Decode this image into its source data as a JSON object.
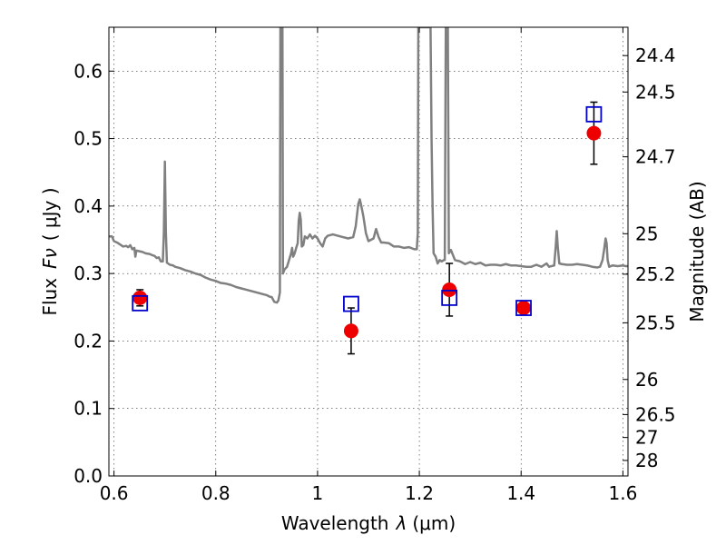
{
  "chart_data": {
    "type": "scatter",
    "xlabel_prefix": "Wavelength",
    "xlabel_symbol": "λ",
    "xlabel_unit": "(μm)",
    "ylabel_prefix": "Flux",
    "ylabel_symbol": "Fν",
    "ylabel_unit": "( μJy )",
    "y2label": "Magnitude (AB)",
    "xlim": [
      0.59,
      1.61
    ],
    "ylim": [
      0.0,
      0.665
    ],
    "grid": true,
    "x_ticks": [
      0.6,
      0.8,
      1.0,
      1.2,
      1.4,
      1.6
    ],
    "x_tick_labels": [
      "0.6",
      "0.8",
      "1",
      "1.2",
      "1.4",
      "1.6"
    ],
    "y_ticks": [
      0.0,
      0.1,
      0.2,
      0.3,
      0.4,
      0.5,
      0.6
    ],
    "y_tick_labels": [
      "0.0",
      "0.1",
      "0.2",
      "0.3",
      "0.4",
      "0.5",
      "0.6"
    ],
    "mag_ticks": [
      {
        "label": "24.4",
        "flux": 0.623
      },
      {
        "label": "24.5",
        "flux": 0.569
      },
      {
        "label": "24.7",
        "flux": 0.473
      },
      {
        "label": "25",
        "flux": 0.359
      },
      {
        "label": "25.2",
        "flux": 0.299
      },
      {
        "label": "25.5",
        "flux": 0.227
      },
      {
        "label": "26",
        "flux": 0.143
      },
      {
        "label": "26.5",
        "flux": 0.091
      },
      {
        "label": "27",
        "flux": 0.057
      },
      {
        "label": "28",
        "flux": 0.023
      }
    ],
    "series": [
      {
        "marker": "open-square",
        "color": "#0000cc",
        "points": [
          {
            "x": 0.651,
            "y": 0.256
          },
          {
            "x": 1.066,
            "y": 0.255
          },
          {
            "x": 1.259,
            "y": 0.264
          },
          {
            "x": 1.405,
            "y": 0.249
          },
          {
            "x": 1.543,
            "y": 0.536
          }
        ]
      },
      {
        "marker": "filled-circle",
        "color": "#ee0000",
        "points": [
          {
            "x": 0.651,
            "y": 0.264,
            "err": 0.012
          },
          {
            "x": 1.066,
            "y": 0.215,
            "err": 0.034
          },
          {
            "x": 1.259,
            "y": 0.276,
            "err": 0.039
          },
          {
            "x": 1.405,
            "y": 0.249,
            "err": 0.0
          },
          {
            "x": 1.543,
            "y": 0.508,
            "err": 0.046
          }
        ]
      },
      {
        "marker": "line",
        "color": "#808080",
        "points": [
          [
            0.59,
            0.355
          ],
          [
            0.596,
            0.355
          ],
          [
            0.6,
            0.348
          ],
          [
            0.606,
            0.346
          ],
          [
            0.612,
            0.343
          ],
          [
            0.618,
            0.34
          ],
          [
            0.624,
            0.341
          ],
          [
            0.628,
            0.339
          ],
          [
            0.632,
            0.342
          ],
          [
            0.636,
            0.336
          ],
          [
            0.64,
            0.338
          ],
          [
            0.642,
            0.325
          ],
          [
            0.644,
            0.334
          ],
          [
            0.65,
            0.333
          ],
          [
            0.656,
            0.332
          ],
          [
            0.662,
            0.33
          ],
          [
            0.67,
            0.329
          ],
          [
            0.676,
            0.327
          ],
          [
            0.68,
            0.326
          ],
          [
            0.684,
            0.323
          ],
          [
            0.688,
            0.324
          ],
          [
            0.692,
            0.318
          ],
          [
            0.696,
            0.318
          ],
          [
            0.698,
            0.36
          ],
          [
            0.7,
            0.466
          ],
          [
            0.702,
            0.36
          ],
          [
            0.704,
            0.316
          ],
          [
            0.71,
            0.313
          ],
          [
            0.716,
            0.312
          ],
          [
            0.72,
            0.31
          ],
          [
            0.73,
            0.308
          ],
          [
            0.74,
            0.305
          ],
          [
            0.75,
            0.303
          ],
          [
            0.76,
            0.3
          ],
          [
            0.77,
            0.298
          ],
          [
            0.78,
            0.294
          ],
          [
            0.79,
            0.291
          ],
          [
            0.8,
            0.289
          ],
          [
            0.81,
            0.286
          ],
          [
            0.82,
            0.285
          ],
          [
            0.83,
            0.283
          ],
          [
            0.84,
            0.28
          ],
          [
            0.85,
            0.278
          ],
          [
            0.86,
            0.276
          ],
          [
            0.87,
            0.274
          ],
          [
            0.88,
            0.272
          ],
          [
            0.89,
            0.27
          ],
          [
            0.9,
            0.268
          ],
          [
            0.905,
            0.266
          ],
          [
            0.91,
            0.265
          ],
          [
            0.915,
            0.258
          ],
          [
            0.92,
            0.257
          ],
          [
            0.923,
            0.26
          ],
          [
            0.926,
            0.272
          ],
          [
            0.927,
            0.665
          ],
          [
            0.929,
            0.665
          ],
          [
            0.931,
            0.665
          ],
          [
            0.932,
            0.3
          ],
          [
            0.935,
            0.306
          ],
          [
            0.94,
            0.31
          ],
          [
            0.944,
            0.32
          ],
          [
            0.948,
            0.33
          ],
          [
            0.95,
            0.338
          ],
          [
            0.952,
            0.325
          ],
          [
            0.955,
            0.33
          ],
          [
            0.958,
            0.338
          ],
          [
            0.961,
            0.345
          ],
          [
            0.963,
            0.378
          ],
          [
            0.965,
            0.39
          ],
          [
            0.967,
            0.38
          ],
          [
            0.969,
            0.34
          ],
          [
            0.972,
            0.342
          ],
          [
            0.975,
            0.355
          ],
          [
            0.98,
            0.352
          ],
          [
            0.985,
            0.358
          ],
          [
            0.99,
            0.352
          ],
          [
            0.995,
            0.356
          ],
          [
            1.0,
            0.352
          ],
          [
            1.005,
            0.345
          ],
          [
            1.01,
            0.34
          ],
          [
            1.015,
            0.352
          ],
          [
            1.02,
            0.356
          ],
          [
            1.03,
            0.358
          ],
          [
            1.04,
            0.356
          ],
          [
            1.05,
            0.354
          ],
          [
            1.06,
            0.352
          ],
          [
            1.07,
            0.354
          ],
          [
            1.075,
            0.37
          ],
          [
            1.08,
            0.403
          ],
          [
            1.083,
            0.41
          ],
          [
            1.086,
            0.4
          ],
          [
            1.09,
            0.385
          ],
          [
            1.095,
            0.36
          ],
          [
            1.1,
            0.348
          ],
          [
            1.105,
            0.35
          ],
          [
            1.11,
            0.352
          ],
          [
            1.115,
            0.366
          ],
          [
            1.12,
            0.354
          ],
          [
            1.125,
            0.346
          ],
          [
            1.13,
            0.346
          ],
          [
            1.14,
            0.345
          ],
          [
            1.15,
            0.34
          ],
          [
            1.16,
            0.34
          ],
          [
            1.17,
            0.338
          ],
          [
            1.18,
            0.339
          ],
          [
            1.19,
            0.336
          ],
          [
            1.195,
            0.336
          ],
          [
            1.197,
            0.36
          ],
          [
            1.198,
            0.665
          ],
          [
            1.215,
            0.665
          ],
          [
            1.22,
            0.665
          ],
          [
            1.222,
            0.665
          ],
          [
            1.224,
            0.5
          ],
          [
            1.226,
            0.4
          ],
          [
            1.228,
            0.33
          ],
          [
            1.232,
            0.325
          ],
          [
            1.236,
            0.315
          ],
          [
            1.24,
            0.32
          ],
          [
            1.244,
            0.318
          ],
          [
            1.248,
            0.32
          ],
          [
            1.25,
            0.32
          ],
          [
            1.252,
            0.665
          ],
          [
            1.256,
            0.665
          ],
          [
            1.258,
            0.33
          ],
          [
            1.262,
            0.335
          ],
          [
            1.27,
            0.32
          ],
          [
            1.28,
            0.318
          ],
          [
            1.29,
            0.314
          ],
          [
            1.3,
            0.317
          ],
          [
            1.31,
            0.314
          ],
          [
            1.32,
            0.316
          ],
          [
            1.33,
            0.312
          ],
          [
            1.34,
            0.313
          ],
          [
            1.35,
            0.313
          ],
          [
            1.36,
            0.312
          ],
          [
            1.37,
            0.314
          ],
          [
            1.38,
            0.312
          ],
          [
            1.39,
            0.312
          ],
          [
            1.4,
            0.311
          ],
          [
            1.41,
            0.31
          ],
          [
            1.42,
            0.31
          ],
          [
            1.43,
            0.313
          ],
          [
            1.44,
            0.31
          ],
          [
            1.45,
            0.315
          ],
          [
            1.455,
            0.31
          ],
          [
            1.46,
            0.311
          ],
          [
            1.465,
            0.312
          ],
          [
            1.468,
            0.34
          ],
          [
            1.47,
            0.363
          ],
          [
            1.472,
            0.34
          ],
          [
            1.475,
            0.315
          ],
          [
            1.48,
            0.314
          ],
          [
            1.49,
            0.313
          ],
          [
            1.5,
            0.313
          ],
          [
            1.51,
            0.314
          ],
          [
            1.52,
            0.313
          ],
          [
            1.53,
            0.312
          ],
          [
            1.54,
            0.31
          ],
          [
            1.55,
            0.309
          ],
          [
            1.555,
            0.31
          ],
          [
            1.56,
            0.32
          ],
          [
            1.563,
            0.335
          ],
          [
            1.566,
            0.352
          ],
          [
            1.568,
            0.345
          ],
          [
            1.57,
            0.32
          ],
          [
            1.573,
            0.31
          ],
          [
            1.58,
            0.312
          ],
          [
            1.59,
            0.311
          ],
          [
            1.6,
            0.312
          ],
          [
            1.605,
            0.311
          ],
          [
            1.61,
            0.311
          ]
        ]
      }
    ]
  }
}
